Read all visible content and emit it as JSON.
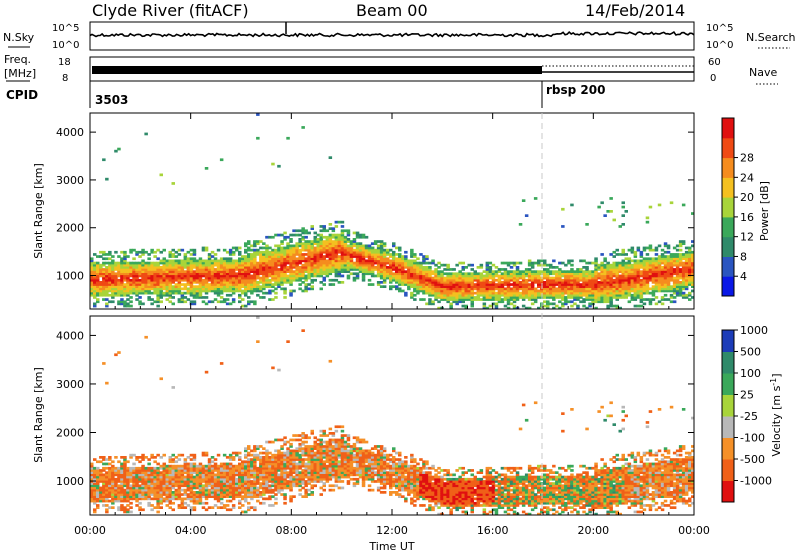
{
  "header": {
    "station": "Clyde River (fitACF)",
    "beam": "Beam 00",
    "date": "14/Feb/2014"
  },
  "status_panels": {
    "nsky_label": "N.Sky",
    "nsearch_label": "N.Search",
    "freq_label_1": "Freq.",
    "freq_label_2": "[MHz]",
    "nave_label": "Nave",
    "cpid_label": "CPID",
    "noise_ticks_left": [
      "10^5",
      "10^0"
    ],
    "noise_ticks_right": [
      "10^5",
      "10^0"
    ],
    "freq_ticks": [
      "18",
      "8"
    ],
    "nave_ticks": [
      "60",
      "0"
    ],
    "cpid_segments": [
      {
        "label": "3503",
        "start_hour": 0
      },
      {
        "label": "rbsp 200",
        "start_hour": 18
      }
    ]
  },
  "chart_data": [
    {
      "type": "heatmap",
      "name": "power",
      "ylabel": "Slant Range [km]",
      "xlabel": "",
      "ylim": [
        300,
        4400
      ],
      "yticks": [
        "1000",
        "2000",
        "3000",
        "4000"
      ],
      "colorbar_label": "Power [dB]",
      "colorbar_ticks": [
        "4",
        "8",
        "12",
        "16",
        "20",
        "24",
        "28"
      ],
      "colorbar_range": [
        0,
        32
      ],
      "colors": [
        "#0a18e6",
        "#2a55c0",
        "#2f8a6a",
        "#3aa85a",
        "#a8d43a",
        "#f4c020",
        "#f58c1e",
        "#ef4a14",
        "#e01010"
      ]
    },
    {
      "type": "heatmap",
      "name": "velocity",
      "ylabel": "Slant Range [km]",
      "xlabel": "Time UT",
      "ylim": [
        300,
        4400
      ],
      "yticks": [
        "1000",
        "2000",
        "3000",
        "4000"
      ],
      "xticks": [
        "00:00",
        "04:00",
        "08:00",
        "12:00",
        "16:00",
        "20:00",
        "00:00"
      ],
      "xlim": [
        0,
        24
      ],
      "colorbar_label": "Velocity [m s",
      "colorbar_label_sup": "-1",
      "colorbar_label_end": "]",
      "colorbar_ticks": [
        "-1000",
        "-500",
        "-100",
        "-25",
        "25",
        "100",
        "500",
        "1000"
      ],
      "colors": [
        "#e01010",
        "#f06018",
        "#f59028",
        "#b8b8b8",
        "#a8d43a",
        "#3aa85a",
        "#2f8a6a",
        "#1c3cb8"
      ]
    }
  ]
}
